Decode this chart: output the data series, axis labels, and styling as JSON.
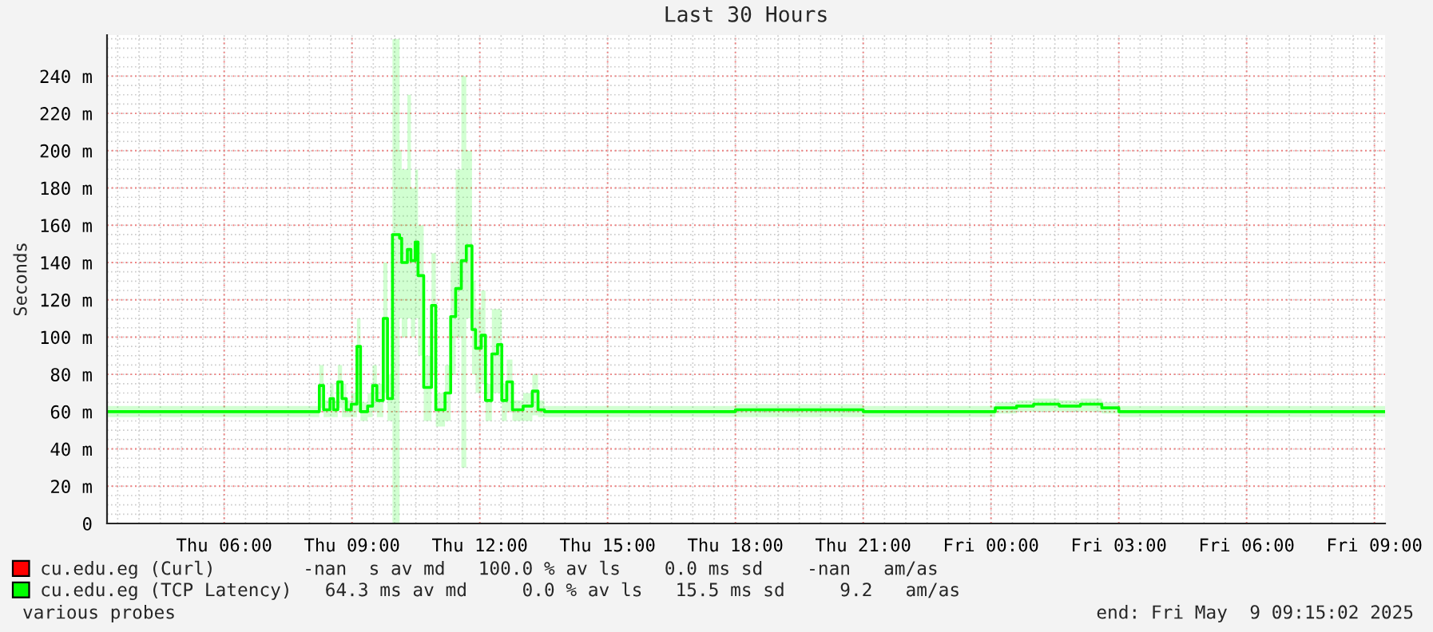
{
  "chart_data": {
    "type": "step",
    "title": "Last 30 Hours",
    "ylabel": "Seconds",
    "xlim": [
      "2025-05-08T03:15",
      "2025-05-09T09:15"
    ],
    "xticks": [
      {
        "value": "2025-05-08T06:00",
        "label": "Thu 06:00"
      },
      {
        "value": "2025-05-08T09:00",
        "label": "Thu 09:00"
      },
      {
        "value": "2025-05-08T12:00",
        "label": "Thu 12:00"
      },
      {
        "value": "2025-05-08T15:00",
        "label": "Thu 15:00"
      },
      {
        "value": "2025-05-08T18:00",
        "label": "Thu 18:00"
      },
      {
        "value": "2025-05-08T21:00",
        "label": "Thu 21:00"
      },
      {
        "value": "2025-05-09T00:00",
        "label": "Fri 00:00"
      },
      {
        "value": "2025-05-09T03:00",
        "label": "Fri 03:00"
      },
      {
        "value": "2025-05-09T06:00",
        "label": "Fri 06:00"
      },
      {
        "value": "2025-05-09T09:00",
        "label": "Fri 09:00"
      }
    ],
    "ylim": [
      0,
      262
    ],
    "yticks": [
      0,
      {
        "value": 20,
        "label": "20 m"
      },
      {
        "value": 40,
        "label": "40 m"
      },
      {
        "value": 60,
        "label": "60 m"
      },
      {
        "value": 80,
        "label": "80 m"
      },
      {
        "value": 100,
        "label": "100 m"
      },
      {
        "value": 120,
        "label": "120 m"
      },
      {
        "value": 140,
        "label": "140 m"
      },
      {
        "value": 160,
        "label": "160 m"
      },
      {
        "value": 180,
        "label": "180 m"
      },
      {
        "value": 200,
        "label": "200 m"
      },
      {
        "value": 220,
        "label": "220 m"
      },
      {
        "value": 240,
        "label": "240 m"
      }
    ],
    "grid": true,
    "legend": "bottom left",
    "series": [
      {
        "name": "cu.edu.eg (Curl)        -nan  s av md   100.0 % av ls    0.0 ms sd    -nan   am/as",
        "color": "#ff0000"
      },
      {
        "name": "cu.edu.eg (TCP Latency)   64.3 ms av md     0.0 % av ls   15.5 ms sd     9.2   am/as",
        "color": "#00ff00",
        "x": [
          "2025-05-08T03:15",
          "2025-05-08T07:59",
          "2025-05-08T08:14",
          "2025-05-08T08:20",
          "2025-05-08T08:29",
          "2025-05-08T08:34",
          "2025-05-08T08:40",
          "2025-05-08T08:46",
          "2025-05-08T08:52",
          "2025-05-08T08:59",
          "2025-05-08T09:07",
          "2025-05-08T09:12",
          "2025-05-08T09:22",
          "2025-05-08T09:29",
          "2025-05-08T09:35",
          "2025-05-08T09:44",
          "2025-05-08T09:50",
          "2025-05-08T09:57",
          "2025-05-08T10:07",
          "2025-05-08T10:10",
          "2025-05-08T10:18",
          "2025-05-08T10:23",
          "2025-05-08T10:29",
          "2025-05-08T10:33",
          "2025-05-08T10:41",
          "2025-05-08T10:52",
          "2025-05-08T10:58",
          "2025-05-08T11:11",
          "2025-05-08T11:19",
          "2025-05-08T11:26",
          "2025-05-08T11:34",
          "2025-05-08T11:41",
          "2025-05-08T11:49",
          "2025-05-08T11:54",
          "2025-05-08T12:02",
          "2025-05-08T12:08",
          "2025-05-08T12:17",
          "2025-05-08T12:25",
          "2025-05-08T12:31",
          "2025-05-08T12:38",
          "2025-05-08T12:46",
          "2025-05-08T13:01",
          "2025-05-08T13:14",
          "2025-05-08T13:22",
          "2025-05-08T13:31",
          "2025-05-08T16:00",
          "2025-05-08T18:00",
          "2025-05-08T21:00",
          "2025-05-09T00:00",
          "2025-05-09T00:06",
          "2025-05-09T00:36",
          "2025-05-09T01:00",
          "2025-05-09T01:36",
          "2025-05-09T02:06",
          "2025-05-09T02:36",
          "2025-05-09T03:00",
          "2025-05-09T06:00",
          "2025-05-09T09:15"
        ],
        "values": [
          60,
          60,
          74,
          61,
          67,
          61,
          76,
          67,
          61,
          64,
          95,
          60,
          63,
          74,
          66,
          110,
          67,
          155,
          153,
          140,
          147,
          141,
          151,
          133,
          73,
          117,
          61,
          70,
          111,
          126,
          141,
          149,
          104,
          94,
          101,
          66,
          91,
          96,
          66,
          76,
          61,
          63,
          71,
          61,
          60,
          60,
          61,
          60,
          60,
          62,
          63,
          64,
          63,
          64,
          62,
          60,
          60,
          60
        ],
        "lower": [
          57,
          57,
          62,
          57,
          57,
          57,
          62,
          57,
          57,
          57,
          60,
          55,
          57,
          60,
          57,
          70,
          55,
          0,
          110,
          100,
          110,
          100,
          110,
          90,
          55,
          80,
          52,
          55,
          80,
          100,
          30,
          110,
          80,
          70,
          75,
          55,
          70,
          70,
          55,
          60,
          55,
          55,
          58,
          57,
          57,
          57,
          57,
          57,
          57,
          59,
          60,
          60,
          60,
          60,
          59,
          57,
          57,
          57
        ],
        "upper": [
          63,
          63,
          85,
          66,
          75,
          66,
          85,
          75,
          66,
          70,
          110,
          65,
          70,
          85,
          75,
          140,
          80,
          260,
          200,
          190,
          230,
          180,
          190,
          160,
          90,
          145,
          70,
          85,
          140,
          190,
          240,
          200,
          130,
          115,
          125,
          75,
          115,
          115,
          75,
          88,
          66,
          70,
          80,
          66,
          63,
          63,
          64,
          63,
          63,
          65,
          66,
          67,
          66,
          67,
          65,
          63,
          63,
          63
        ]
      }
    ],
    "annotations": [
      "various probes",
      "end: Fri May  9 09:15:02 2025"
    ]
  }
}
